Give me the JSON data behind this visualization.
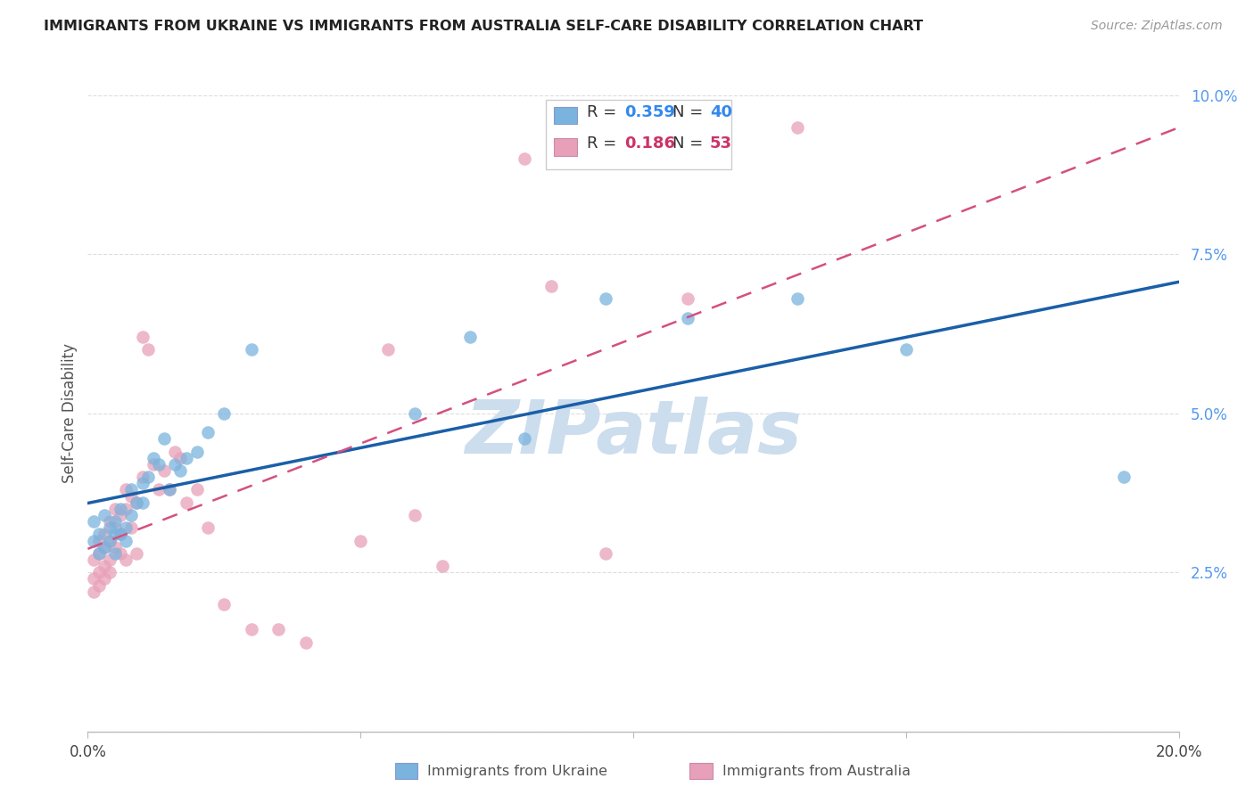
{
  "title": "IMMIGRANTS FROM UKRAINE VS IMMIGRANTS FROM AUSTRALIA SELF-CARE DISABILITY CORRELATION CHART",
  "source": "Source: ZipAtlas.com",
  "ylabel": "Self-Care Disability",
  "xlim": [
    0.0,
    0.2
  ],
  "ylim": [
    0.0,
    0.1
  ],
  "ukraine_color": "#7ab3dd",
  "australia_color": "#e8a0b8",
  "ukraine_line_color": "#1a5fa8",
  "australia_line_color": "#d45080",
  "ukraine_R": 0.359,
  "ukraine_N": 40,
  "australia_R": 0.186,
  "australia_N": 53,
  "ukraine_x": [
    0.001,
    0.001,
    0.002,
    0.002,
    0.003,
    0.003,
    0.004,
    0.004,
    0.005,
    0.005,
    0.005,
    0.006,
    0.006,
    0.007,
    0.007,
    0.008,
    0.008,
    0.009,
    0.01,
    0.01,
    0.011,
    0.012,
    0.013,
    0.014,
    0.015,
    0.016,
    0.017,
    0.018,
    0.02,
    0.022,
    0.025,
    0.03,
    0.06,
    0.07,
    0.08,
    0.095,
    0.11,
    0.13,
    0.15,
    0.19
  ],
  "ukraine_y": [
    0.03,
    0.033,
    0.028,
    0.031,
    0.029,
    0.034,
    0.032,
    0.03,
    0.031,
    0.028,
    0.033,
    0.031,
    0.035,
    0.03,
    0.032,
    0.034,
    0.038,
    0.036,
    0.039,
    0.036,
    0.04,
    0.043,
    0.042,
    0.046,
    0.038,
    0.042,
    0.041,
    0.043,
    0.044,
    0.047,
    0.05,
    0.06,
    0.05,
    0.062,
    0.046,
    0.068,
    0.065,
    0.068,
    0.06,
    0.04
  ],
  "australia_x": [
    0.001,
    0.001,
    0.001,
    0.002,
    0.002,
    0.002,
    0.002,
    0.003,
    0.003,
    0.003,
    0.003,
    0.004,
    0.004,
    0.004,
    0.004,
    0.005,
    0.005,
    0.005,
    0.006,
    0.006,
    0.006,
    0.007,
    0.007,
    0.007,
    0.008,
    0.008,
    0.009,
    0.009,
    0.01,
    0.01,
    0.011,
    0.012,
    0.013,
    0.014,
    0.015,
    0.016,
    0.017,
    0.018,
    0.02,
    0.022,
    0.025,
    0.03,
    0.035,
    0.04,
    0.05,
    0.055,
    0.06,
    0.065,
    0.08,
    0.085,
    0.095,
    0.11,
    0.13
  ],
  "australia_y": [
    0.024,
    0.022,
    0.027,
    0.025,
    0.023,
    0.028,
    0.03,
    0.026,
    0.024,
    0.029,
    0.031,
    0.027,
    0.025,
    0.033,
    0.03,
    0.029,
    0.032,
    0.035,
    0.031,
    0.028,
    0.034,
    0.038,
    0.035,
    0.027,
    0.037,
    0.032,
    0.036,
    0.028,
    0.04,
    0.062,
    0.06,
    0.042,
    0.038,
    0.041,
    0.038,
    0.044,
    0.043,
    0.036,
    0.038,
    0.032,
    0.02,
    0.016,
    0.016,
    0.014,
    0.03,
    0.06,
    0.034,
    0.026,
    0.09,
    0.07,
    0.028,
    0.068,
    0.095
  ],
  "watermark_text": "ZIPatlas",
  "watermark_color": "#ccdded",
  "grid_color": "#dddddd",
  "background_color": "#ffffff",
  "legend_ukraine_color": "#3388ee",
  "legend_australia_color": "#cc3366"
}
